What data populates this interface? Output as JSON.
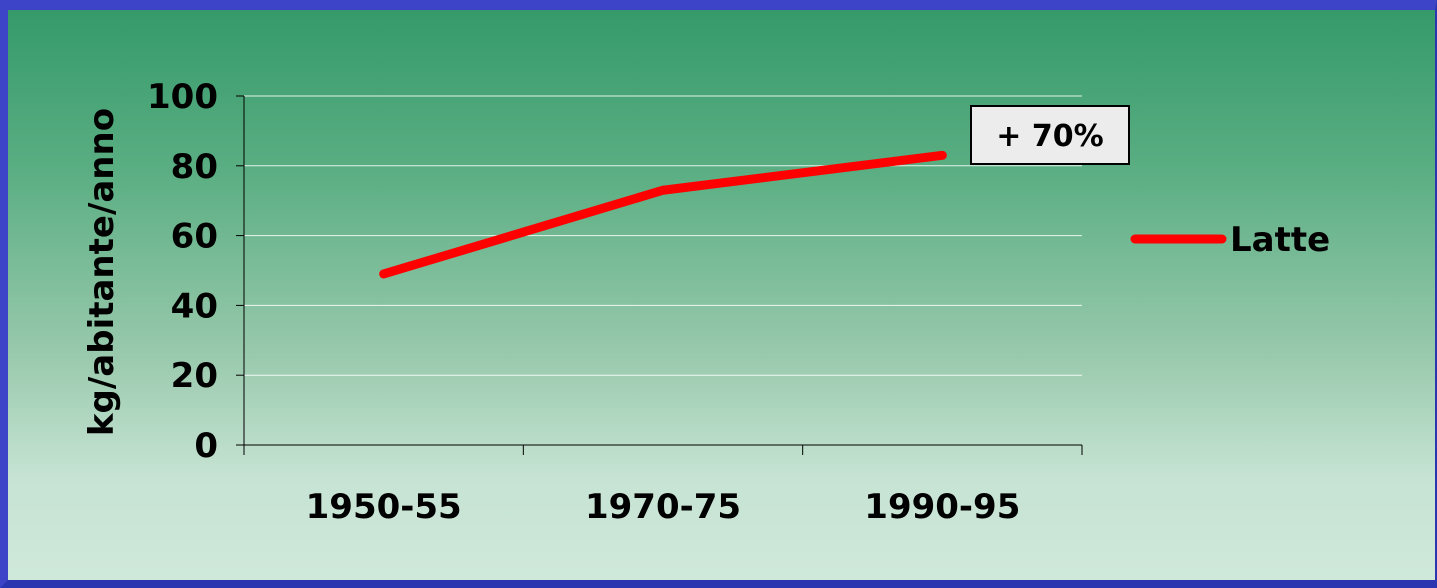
{
  "chart_data": {
    "type": "line",
    "categories": [
      "1950-55",
      "1970-75",
      "1990-95"
    ],
    "series": [
      {
        "name": "Latte",
        "values": [
          49,
          73,
          83
        ],
        "color": "#ff0000"
      }
    ],
    "ylabel": "kg/abitante/anno",
    "xlabel": "",
    "ylim": [
      0,
      100
    ],
    "yticks": [
      "0",
      "20",
      "40",
      "60",
      "80",
      "100"
    ],
    "grid": true,
    "legend": "right",
    "annotation": "+ 70%"
  }
}
